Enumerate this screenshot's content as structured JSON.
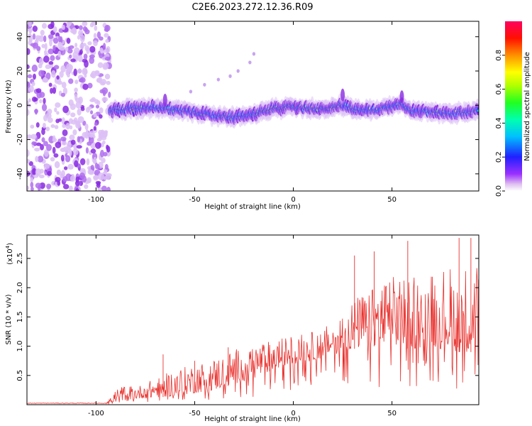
{
  "title": "C2E6.2023.272.12.36.R09",
  "colors": {
    "snr_line": "#e8302c",
    "axis": "#000000"
  },
  "chart_data": [
    {
      "type": "heatmap",
      "title": "C2E6.2023.272.12.36.R09",
      "xlabel": "Height of straight line (km)",
      "ylabel": "Frequency (Hz)",
      "xlim": [
        -135,
        94
      ],
      "ylim": [
        -50,
        49
      ],
      "xticks": [
        -100,
        -50,
        0,
        50
      ],
      "yticks": [
        -40,
        -20,
        0,
        20,
        40
      ],
      "xtick_labels": [
        "-100",
        "-50",
        "0",
        "50"
      ],
      "ytick_labels": [
        "-40",
        "-20",
        "0",
        "20",
        "40"
      ],
      "noise_region_km": [
        -135,
        -93
      ],
      "doppler_track": {
        "x": [
          -93,
          -80,
          -70,
          -60,
          -50,
          -40,
          -30,
          -20,
          -10,
          0,
          10,
          20,
          25,
          30,
          40,
          50,
          55,
          60,
          70,
          80,
          94
        ],
        "freq_hz": [
          -3,
          -2,
          -1,
          -3,
          -4,
          -6,
          -7,
          -5,
          -2,
          -1,
          -2,
          -1,
          0,
          -2,
          -3,
          -1,
          1,
          -3,
          -4,
          -5,
          -3
        ]
      },
      "secondary_track": {
        "x": [
          -52,
          -45,
          -38,
          -32,
          -28,
          -22,
          -20
        ],
        "freq_hz": [
          8,
          12,
          15,
          17,
          20,
          25,
          30
        ]
      }
    },
    {
      "type": "colorbar",
      "label": "Normalized spectral amplitude",
      "range": [
        0,
        1
      ],
      "ticks": [
        0.0,
        0.2,
        0.4,
        0.6,
        0.8
      ],
      "tick_labels": [
        "0.0",
        "0.2",
        "0.4",
        "0.6",
        "0.8"
      ]
    },
    {
      "type": "line",
      "xlabel": "Height of straight line (km)",
      "ylabel": "SNR (10 * v/v)",
      "multiplier_label": "(x10",
      "multiplier_exp": "4",
      "xlim": [
        -135,
        94
      ],
      "ylim": [
        0,
        2.9
      ],
      "xticks": [
        -100,
        -50,
        0,
        50
      ],
      "yticks": [
        0.5,
        1.0,
        1.5,
        2.0,
        2.5
      ],
      "xtick_labels": [
        "-100",
        "-50",
        "0",
        "50"
      ],
      "ytick_labels": [
        "0.5",
        "1.0",
        "1.5",
        "2.0",
        "2.5"
      ],
      "envelope": {
        "x": [
          -135,
          -95,
          -90,
          -85,
          -80,
          -70,
          -60,
          -50,
          -40,
          -30,
          -20,
          -10,
          0,
          10,
          20,
          30,
          40,
          50,
          60,
          70,
          80,
          94
        ],
        "base": [
          0.02,
          0.02,
          0.05,
          0.08,
          0.1,
          0.12,
          0.15,
          0.2,
          0.25,
          0.35,
          0.45,
          0.6,
          0.7,
          0.75,
          0.85,
          0.95,
          1.0,
          1.0,
          0.95,
          1.0,
          0.9,
          0.9
        ],
        "top": [
          0.04,
          0.04,
          0.25,
          0.35,
          0.3,
          0.45,
          0.6,
          0.7,
          0.8,
          0.95,
          1.05,
          1.1,
          1.2,
          1.25,
          1.4,
          1.8,
          2.0,
          2.2,
          2.3,
          2.3,
          2.4,
          2.4
        ]
      },
      "peaks": [
        {
          "x": -66,
          "y": 0.86
        },
        {
          "x": -50,
          "y": 0.75
        },
        {
          "x": -33,
          "y": 0.98
        },
        {
          "x": -12,
          "y": 1.02
        },
        {
          "x": 31,
          "y": 2.55
        },
        {
          "x": 41,
          "y": 2.62
        },
        {
          "x": 58,
          "y": 2.8
        },
        {
          "x": 84,
          "y": 2.85
        },
        {
          "x": 90,
          "y": 2.85
        }
      ]
    }
  ]
}
